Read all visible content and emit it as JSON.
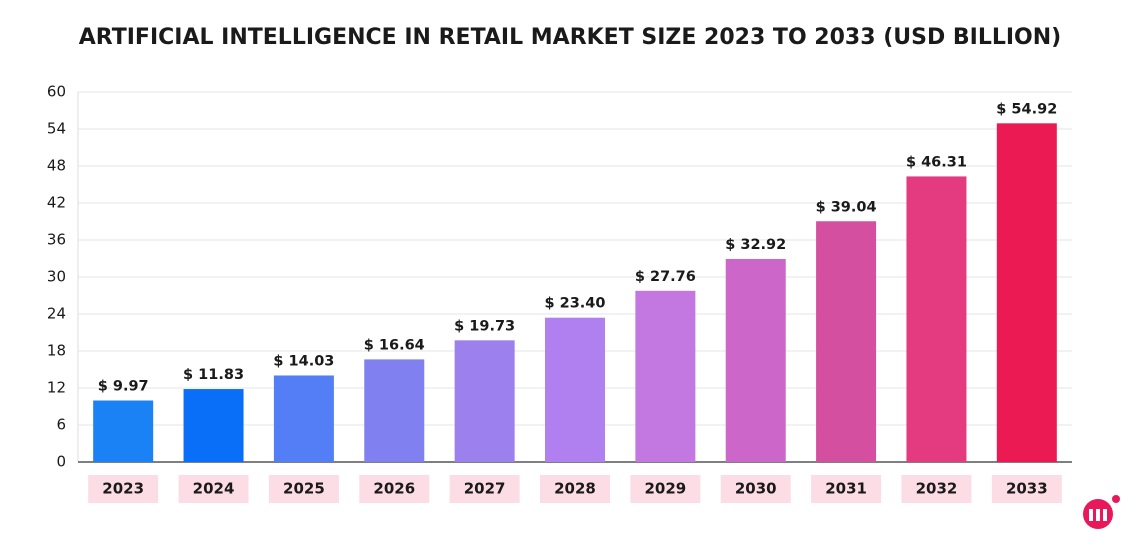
{
  "chart_data": {
    "type": "bar",
    "title": "ARTIFICIAL INTELLIGENCE IN RETAIL MARKET SIZE 2023 TO 2033 (USD BILLION)",
    "categories": [
      "2023",
      "2024",
      "2025",
      "2026",
      "2027",
      "2028",
      "2029",
      "2030",
      "2031",
      "2032",
      "2033"
    ],
    "values": [
      9.97,
      11.83,
      14.03,
      16.64,
      19.73,
      23.4,
      27.76,
      32.92,
      39.04,
      46.31,
      54.92
    ],
    "value_labels": [
      "$ 9.97",
      "$ 11.83",
      "$ 14.03",
      "$ 16.64",
      "$ 19.73",
      "$ 23.40",
      "$ 27.76",
      "$ 32.92",
      "$ 39.04",
      "$ 46.31",
      "$ 54.92"
    ],
    "colors": [
      "#1a82f5",
      "#0a6ff8",
      "#547ef5",
      "#8080f0",
      "#9b80ee",
      "#b07ff0",
      "#c278e0",
      "#cc66c8",
      "#d44fa0",
      "#e33a80",
      "#ec1a52"
    ],
    "ylim": [
      0,
      60
    ],
    "yticks": [
      0,
      6,
      12,
      18,
      24,
      30,
      36,
      42,
      48,
      54,
      60
    ],
    "grid": true
  }
}
